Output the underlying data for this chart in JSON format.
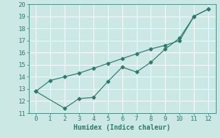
{
  "line1_x": [
    0,
    1,
    2,
    3,
    4,
    5,
    6,
    7,
    8,
    9,
    10,
    11,
    12
  ],
  "line1_y": [
    12.8,
    13.7,
    14.0,
    14.3,
    14.7,
    15.1,
    15.5,
    15.9,
    16.3,
    16.6,
    17.0,
    19.0,
    19.6
  ],
  "line2_x": [
    0,
    2,
    3,
    4,
    5,
    6,
    7,
    8,
    9,
    10,
    11,
    12
  ],
  "line2_y": [
    12.8,
    11.4,
    12.2,
    12.3,
    13.6,
    14.8,
    14.4,
    15.2,
    16.3,
    17.2,
    19.0,
    19.6
  ],
  "line_color": "#2a7d6e",
  "bg_color": "#cce8e4",
  "grid_color": "#b8d8d4",
  "xlabel": "Humidex (Indice chaleur)",
  "xlim": [
    -0.5,
    12.5
  ],
  "ylim": [
    11,
    20
  ],
  "xticks": [
    0,
    1,
    2,
    3,
    4,
    5,
    6,
    7,
    8,
    9,
    10,
    11,
    12
  ],
  "yticks": [
    11,
    12,
    13,
    14,
    15,
    16,
    17,
    18,
    19,
    20
  ],
  "xlabel_fontsize": 7,
  "tick_fontsize": 6.5
}
